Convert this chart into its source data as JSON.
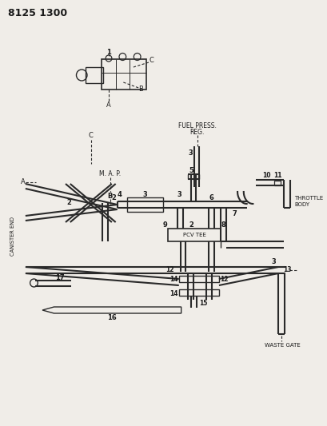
{
  "title": "8125 1300",
  "bg_color": "#f0ede8",
  "line_color": "#2a2a2a",
  "text_color": "#1a1a1a",
  "fig_w": 4.1,
  "fig_h": 5.33,
  "dpi": 100,
  "labels": {
    "fuel_press": [
      "FUEL PRESS.",
      "REG."
    ],
    "map": "M. A. P.",
    "throttle": [
      "THROTTLE",
      "BODY"
    ],
    "waste_gate": "WASTE GATE",
    "canister": "CANISTER END",
    "pcv": "PCV TEE"
  }
}
